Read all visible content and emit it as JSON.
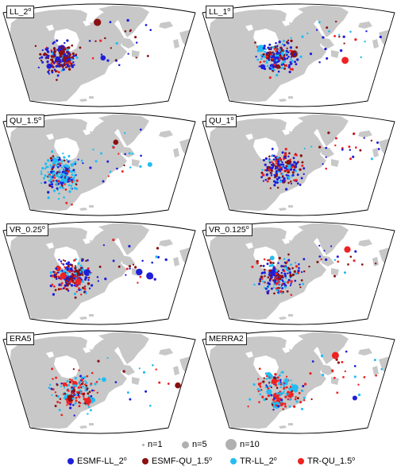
{
  "colors": {
    "ESMF-LL_2": "#1e1edb",
    "ESMF-QU_1.5": "#8b1010",
    "TR-LL_2": "#22bdf2",
    "TR-QU_1.5": "#ee2222",
    "land": "#c8c8c8",
    "size_key": "#b0b0b0"
  },
  "panels": [
    {
      "id": "LL_2",
      "label": "LL_2",
      "sup": "o"
    },
    {
      "id": "LL_1",
      "label": "LL_1",
      "sup": "o"
    },
    {
      "id": "QU_1.5",
      "label": "QU_1.5",
      "sup": "o"
    },
    {
      "id": "QU_1",
      "label": "QU_1",
      "sup": "o"
    },
    {
      "id": "VR_0.25",
      "label": "VR_0.25",
      "sup": "o"
    },
    {
      "id": "VR_0.125",
      "label": "VR_0.125",
      "sup": "o"
    },
    {
      "id": "ERA5",
      "label": "ERA5",
      "sup": ""
    },
    {
      "id": "MERRA2",
      "label": "MERRA2",
      "sup": ""
    }
  ],
  "legend": {
    "sizes": [
      {
        "label": "n=1",
        "n": 1
      },
      {
        "label": "n=5",
        "n": 5
      },
      {
        "label": "n=10",
        "n": 10
      }
    ],
    "series": [
      {
        "key": "ESMF-LL_2",
        "label": "ESMF-LL_2",
        "sup": "o",
        "color": "#1e1edb"
      },
      {
        "key": "ESMF-QU_1.5",
        "label": "ESMF-QU_1.5",
        "sup": "o",
        "color": "#8b1010"
      },
      {
        "key": "TR-LL_2",
        "label": "TR-LL_2",
        "sup": "o",
        "color": "#22bdf2"
      },
      {
        "key": "TR-QU_1.5",
        "label": "TR-QU_1.5",
        "sup": "o",
        "color": "#ee2222"
      }
    ]
  }
}
